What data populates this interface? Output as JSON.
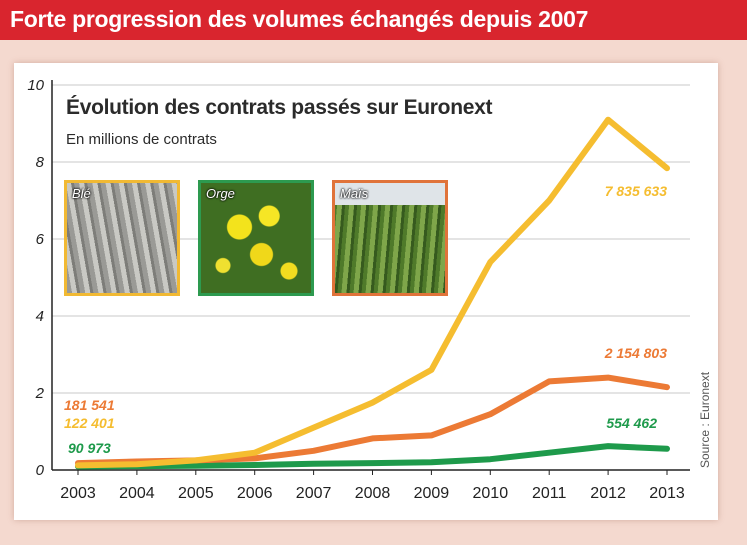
{
  "header": {
    "title": "Forte progression des volumes échangés depuis 2007"
  },
  "source": "Source : Euronext",
  "photos": [
    {
      "label": "Blé",
      "border_color": "#f1b933"
    },
    {
      "label": "Orge",
      "border_color": "#2d9a4f"
    },
    {
      "label": "Maïs",
      "border_color": "#e0733a"
    }
  ],
  "colors": {
    "banner": "#d9252e",
    "background": "#f4d9cf",
    "grid": "#c8c8c8"
  },
  "chart_data": {
    "type": "line",
    "title": "Évolution des contrats passés sur Euronext",
    "subtitle": "En millions de contrats",
    "x": [
      "2003",
      "2004",
      "2005",
      "2006",
      "2007",
      "2008",
      "2009",
      "2010",
      "2011",
      "2012",
      "2013"
    ],
    "ylim": [
      0,
      10
    ],
    "yticks": [
      "0",
      "2",
      "4",
      "6",
      "8",
      "10"
    ],
    "grid": true,
    "series": [
      {
        "color": "#f5bd30",
        "values": [
          0.12,
          0.15,
          0.25,
          0.45,
          1.1,
          1.75,
          2.6,
          5.4,
          7.0,
          9.1,
          7.84
        ],
        "labels": [
          {
            "index": 0,
            "text": "122 401",
            "position": "above-left"
          },
          {
            "index": 10,
            "text": "7 835 633",
            "position": "below"
          }
        ]
      },
      {
        "color": "#ec7a35",
        "values": [
          0.18,
          0.22,
          0.25,
          0.3,
          0.5,
          0.82,
          0.9,
          1.45,
          2.3,
          2.4,
          2.15
        ],
        "labels": [
          {
            "index": 0,
            "text": "181 541",
            "position": "above-left"
          },
          {
            "index": 10,
            "text": "2 154 803",
            "position": "above"
          }
        ]
      },
      {
        "color": "#1e9a4b",
        "values": [
          0.09,
          0.1,
          0.11,
          0.13,
          0.16,
          0.18,
          0.2,
          0.28,
          0.45,
          0.62,
          0.55
        ],
        "labels": [
          {
            "index": 0,
            "text": "90 973",
            "position": "above-left"
          },
          {
            "index": 10,
            "text": "554 462",
            "position": "above"
          }
        ]
      }
    ]
  }
}
